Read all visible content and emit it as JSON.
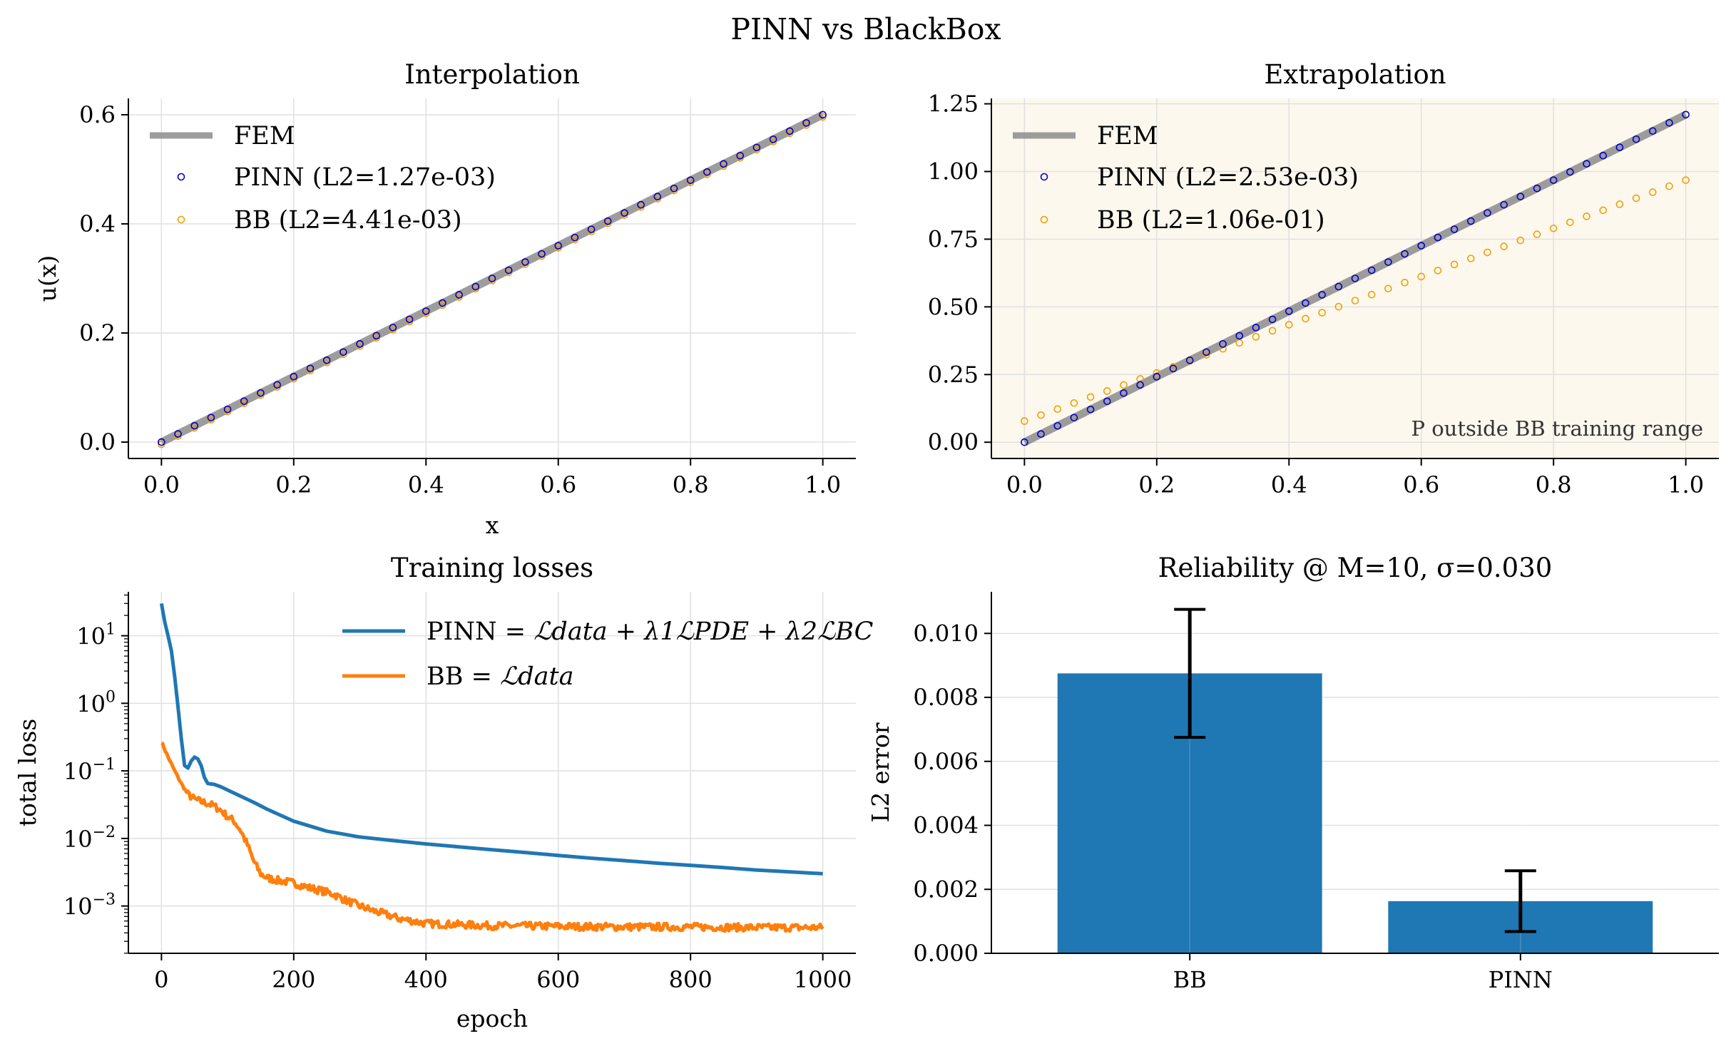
{
  "figure": {
    "suptitle": "PINN vs BlackBox"
  },
  "colors": {
    "fem": "#8c8c8c",
    "pinn_marker": "#0000cc",
    "bb_marker": "#f0a000",
    "pinn_loss": "#1f77b4",
    "bb_loss": "#ff7f0e",
    "bar": "#1f77b4",
    "extrap_bg": "#fdf8ee"
  },
  "chart_data": [
    {
      "id": "interp",
      "type": "line",
      "title": "Interpolation",
      "xlabel": "x",
      "ylabel": "u(x)",
      "xlim": [
        -0.05,
        1.05
      ],
      "ylim": [
        -0.03,
        0.63
      ],
      "xticks": [
        0.0,
        0.2,
        0.4,
        0.6,
        0.8,
        1.0
      ],
      "xtick_labels": [
        "0.0",
        "0.2",
        "0.4",
        "0.6",
        "0.8",
        "1.0"
      ],
      "yticks": [
        0.0,
        0.2,
        0.4,
        0.6
      ],
      "ytick_labels": [
        "0.0",
        "0.2",
        "0.4",
        "0.6"
      ],
      "grid": true,
      "legend_position": "upper-left",
      "annotation": "",
      "fem": {
        "label": "FEM",
        "x": [
          0,
          1
        ],
        "y": [
          0,
          0.6
        ]
      },
      "n_points": 41,
      "pinn": {
        "label": "PINN (L2=1.27e-03)",
        "slope": 0.6,
        "intercept": 0.0
      },
      "bb": {
        "label": "BB (L2=4.41e-03)",
        "slope": 0.6,
        "intercept": -0.004
      }
    },
    {
      "id": "extrap",
      "type": "line",
      "title": "Extrapolation",
      "xlabel": "",
      "ylabel": "",
      "xlim": [
        -0.05,
        1.05
      ],
      "ylim": [
        -0.06,
        1.27
      ],
      "xticks": [
        0.0,
        0.2,
        0.4,
        0.6,
        0.8,
        1.0
      ],
      "xtick_labels": [
        "0.0",
        "0.2",
        "0.4",
        "0.6",
        "0.8",
        "1.0"
      ],
      "yticks": [
        0.0,
        0.25,
        0.5,
        0.75,
        1.0,
        1.25
      ],
      "ytick_labels": [
        "0.00",
        "0.25",
        "0.50",
        "0.75",
        "1.00",
        "1.25"
      ],
      "grid": true,
      "legend_position": "upper-left",
      "annotation": "P outside BB training range",
      "fem": {
        "label": "FEM",
        "x": [
          0,
          1
        ],
        "y": [
          0,
          1.21
        ]
      },
      "n_points": 41,
      "pinn": {
        "label": "PINN (L2=2.53e-03)",
        "slope": 1.21,
        "intercept": 0.0
      },
      "bb": {
        "label": "BB (L2=1.06e-01)",
        "slope": 0.89,
        "intercept": 0.078
      }
    },
    {
      "id": "loss",
      "type": "line",
      "title": "Training losses",
      "xlabel": "epoch",
      "ylabel": "total loss",
      "yscale": "log",
      "xlim": [
        -50,
        1050
      ],
      "ylim_log10": [
        -3.7,
        1.65
      ],
      "xticks": [
        0,
        200,
        400,
        600,
        800,
        1000
      ],
      "xtick_labels": [
        "0",
        "200",
        "400",
        "600",
        "800",
        "1000"
      ],
      "yticks_log10": [
        1,
        0,
        -1,
        -2,
        -3
      ],
      "grid": true,
      "legend_position": "upper-right",
      "series": [
        {
          "name": "PINN",
          "name_math": "= ℒdata + λ1ℒPDE + λ2ℒBC",
          "x": [
            0,
            5,
            10,
            15,
            20,
            25,
            30,
            35,
            40,
            45,
            50,
            55,
            60,
            65,
            70,
            80,
            90,
            100,
            120,
            140,
            160,
            180,
            200,
            250,
            300,
            350,
            400,
            450,
            500,
            550,
            600,
            650,
            700,
            750,
            800,
            850,
            900,
            950,
            1000
          ],
          "y": [
            30,
            16,
            10,
            6,
            2.5,
            0.9,
            0.3,
            0.12,
            0.11,
            0.14,
            0.16,
            0.15,
            0.12,
            0.08,
            0.065,
            0.063,
            0.058,
            0.052,
            0.042,
            0.034,
            0.027,
            0.022,
            0.018,
            0.0128,
            0.0105,
            0.0093,
            0.0083,
            0.0075,
            0.0068,
            0.0062,
            0.0056,
            0.0051,
            0.0047,
            0.0043,
            0.004,
            0.0037,
            0.0034,
            0.0032,
            0.003
          ]
        },
        {
          "name": "BB",
          "name_math": "= ℒdata",
          "noisy": true,
          "x": [
            0,
            10,
            20,
            30,
            40,
            50,
            60,
            70,
            80,
            90,
            100,
            110,
            120,
            130,
            140,
            150,
            160,
            175,
            200,
            220,
            240,
            260,
            280,
            300,
            320,
            340,
            360,
            380,
            400,
            450,
            500,
            600,
            700,
            800,
            900,
            1000
          ],
          "y": [
            0.27,
            0.16,
            0.1,
            0.065,
            0.045,
            0.038,
            0.035,
            0.033,
            0.03,
            0.026,
            0.021,
            0.018,
            0.013,
            0.008,
            0.0045,
            0.003,
            0.0026,
            0.0024,
            0.0022,
            0.0019,
            0.0017,
            0.0015,
            0.0012,
            0.001,
            0.00085,
            0.00075,
            0.00065,
            0.0006,
            0.00055,
            0.00053,
            0.00051,
            0.0005,
            0.00049,
            0.00049,
            0.00048,
            0.00048
          ]
        }
      ]
    },
    {
      "id": "rel",
      "type": "bar",
      "title": "Reliability @ M=10,  σ=0.030",
      "xlabel": "",
      "ylabel": "L2 error",
      "ylim": [
        0,
        0.0113
      ],
      "yticks": [
        0,
        0.002,
        0.004,
        0.006,
        0.008,
        0.01
      ],
      "ytick_labels": [
        "0.000",
        "0.002",
        "0.004",
        "0.006",
        "0.008",
        "0.010"
      ],
      "grid": true,
      "categories": [
        "BB",
        "PINN"
      ],
      "values": [
        0.00875,
        0.00163
      ],
      "errors": [
        0.002,
        0.00095
      ]
    }
  ]
}
